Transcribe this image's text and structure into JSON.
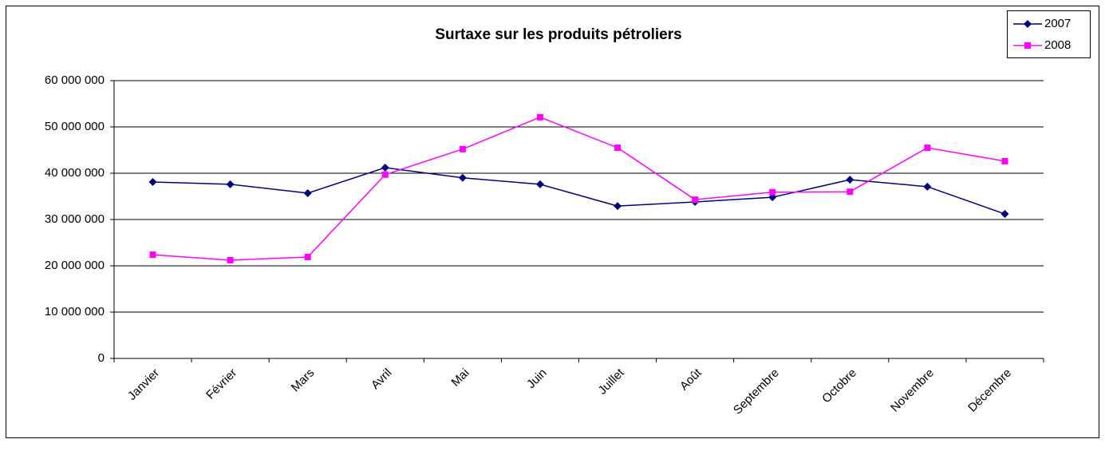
{
  "chart_data": {
    "type": "line",
    "title": "Surtaxe sur les produits pétroliers",
    "categories": [
      "Janvier",
      "Février",
      "Mars",
      "Avril",
      "Mai",
      "Juin",
      "Juillet",
      "Août",
      "Septembre",
      "Octobre",
      "Novembre",
      "Décembre"
    ],
    "series": [
      {
        "name": "2007",
        "color": "#000080",
        "marker": "diamond",
        "values": [
          38100000,
          37600000,
          35700000,
          41200000,
          39000000,
          37600000,
          32900000,
          33800000,
          34800000,
          38600000,
          37100000,
          31200000
        ]
      },
      {
        "name": "2008",
        "color": "#ff00ff",
        "marker": "square",
        "values": [
          22400000,
          21200000,
          21900000,
          39700000,
          45200000,
          52100000,
          45500000,
          34300000,
          35900000,
          36000000,
          45500000,
          42600000
        ]
      }
    ],
    "ylim": [
      0,
      60000000
    ],
    "yticks": [
      0,
      {
        "value": 10000000,
        "label": "10 000 000"
      },
      {
        "value": 20000000,
        "label": "20 000 000"
      },
      {
        "value": 30000000,
        "label": "30 000 000"
      },
      {
        "value": 40000000,
        "label": "40 000 000"
      },
      {
        "value": 50000000,
        "label": "50 000 000"
      },
      {
        "value": 60000000,
        "label": "60 000 000"
      }
    ],
    "grid": true,
    "legend": "top-right"
  }
}
